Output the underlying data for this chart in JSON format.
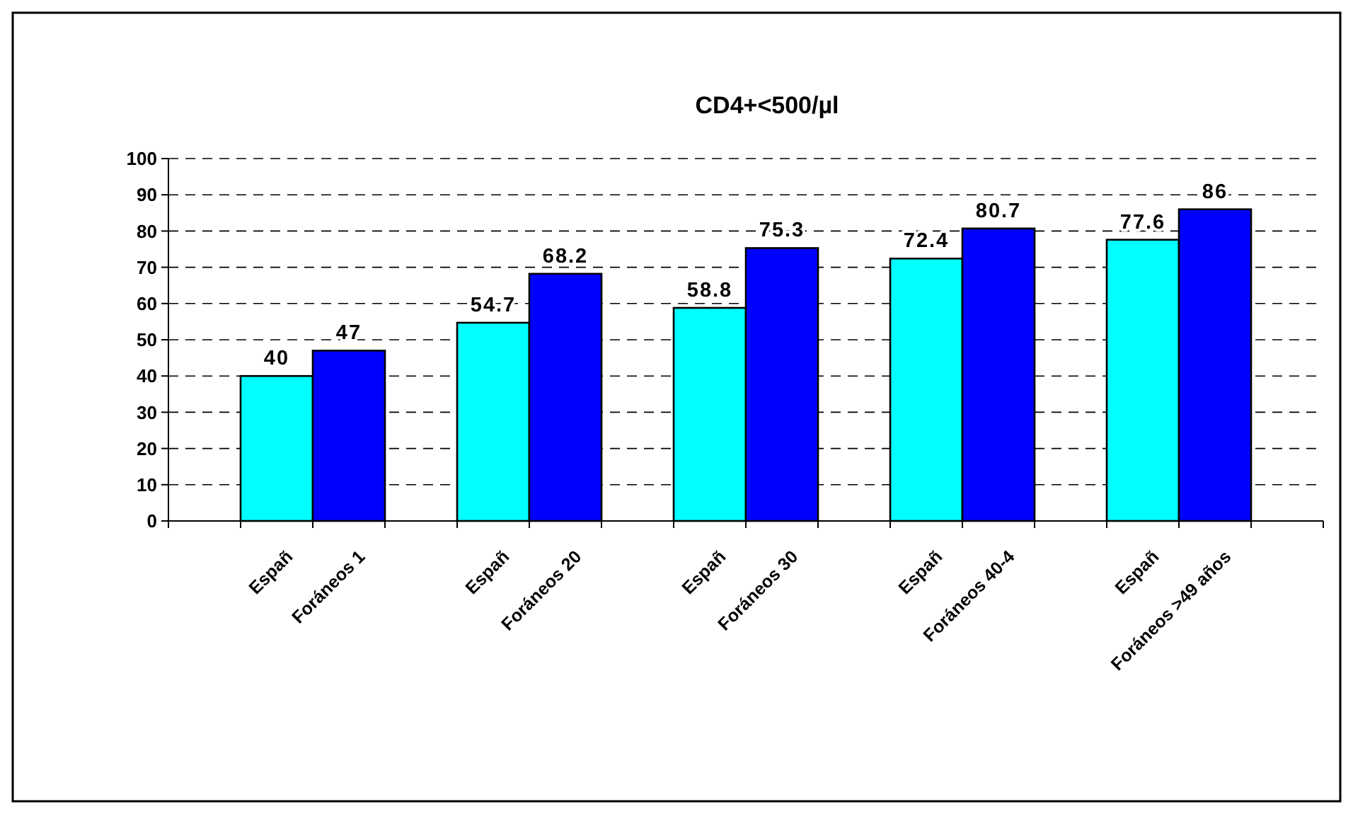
{
  "chart_data": {
    "type": "bar",
    "title": "CD4+<500/µl",
    "categories": [
      null,
      "Españ",
      "Foráneos 1",
      null,
      "Españ",
      "Foráneos 20",
      null,
      "Españ",
      "Foráneos 30",
      null,
      "Españ",
      "Foráneos 40-4",
      null,
      "Españ",
      "Foráneos >49 años",
      null
    ],
    "values": [
      null,
      40,
      47,
      null,
      54.7,
      68.2,
      null,
      58.8,
      75.3,
      null,
      72.4,
      80.7,
      null,
      77.6,
      86,
      null
    ],
    "colors": [
      null,
      "#00ffff",
      "#0000ff",
      null,
      "#00ffff",
      "#0000ff",
      null,
      "#00ffff",
      "#0000ff",
      null,
      "#00ffff",
      "#0000ff",
      null,
      "#00ffff",
      "#0000ff",
      null
    ],
    "ylim": [
      0,
      100
    ],
    "yticks": [
      0,
      10,
      20,
      30,
      40,
      50,
      60,
      70,
      80,
      90,
      100
    ],
    "grid": "y",
    "data_labels": true
  }
}
